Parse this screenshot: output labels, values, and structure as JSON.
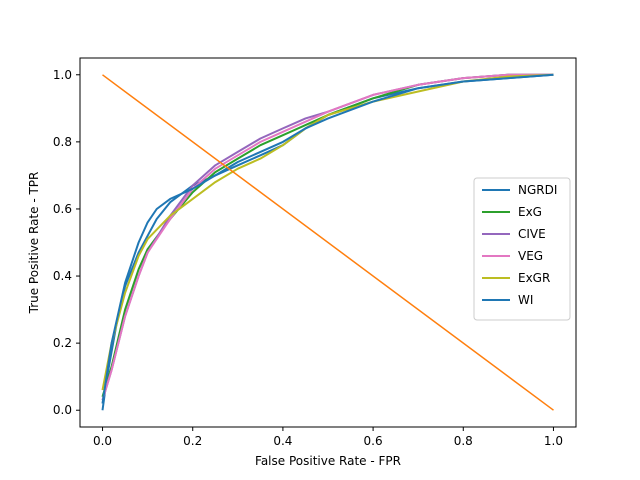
{
  "chart_data": {
    "type": "line",
    "xlabel": "False Positive Rate - FPR",
    "ylabel": "True Positive Rate - TPR",
    "xlim": [
      -0.05,
      1.05
    ],
    "ylim": [
      -0.05,
      1.05
    ],
    "xticks": [
      0.0,
      0.2,
      0.4,
      0.6,
      0.8,
      1.0
    ],
    "yticks": [
      0.0,
      0.2,
      0.4,
      0.6,
      0.8,
      1.0
    ],
    "tick_labels": [
      "0.0",
      "0.2",
      "0.4",
      "0.6",
      "0.8",
      "1.0"
    ],
    "grid": false,
    "legend": "center-right",
    "series": [
      {
        "name": "NGRDI",
        "color": "#1f77b4",
        "points": [
          [
            0,
            0
          ],
          [
            0.01,
            0.1
          ],
          [
            0.03,
            0.25
          ],
          [
            0.05,
            0.37
          ],
          [
            0.08,
            0.47
          ],
          [
            0.1,
            0.52
          ],
          [
            0.12,
            0.57
          ],
          [
            0.15,
            0.62
          ],
          [
            0.2,
            0.67
          ],
          [
            0.25,
            0.7
          ],
          [
            0.3,
            0.73
          ],
          [
            0.35,
            0.76
          ],
          [
            0.4,
            0.79
          ],
          [
            0.45,
            0.84
          ],
          [
            0.5,
            0.88
          ],
          [
            0.6,
            0.93
          ],
          [
            0.7,
            0.96
          ],
          [
            0.8,
            0.98
          ],
          [
            0.9,
            0.99
          ],
          [
            1,
            1
          ]
        ]
      },
      {
        "name": "ExG",
        "color": "#2ca02c",
        "points": [
          [
            0,
            0.04
          ],
          [
            0.02,
            0.13
          ],
          [
            0.05,
            0.3
          ],
          [
            0.08,
            0.42
          ],
          [
            0.1,
            0.48
          ],
          [
            0.15,
            0.57
          ],
          [
            0.2,
            0.65
          ],
          [
            0.25,
            0.71
          ],
          [
            0.3,
            0.75
          ],
          [
            0.35,
            0.79
          ],
          [
            0.4,
            0.82
          ],
          [
            0.45,
            0.85
          ],
          [
            0.5,
            0.88
          ],
          [
            0.6,
            0.93
          ],
          [
            0.7,
            0.97
          ],
          [
            0.8,
            0.99
          ],
          [
            0.9,
            1.0
          ],
          [
            1,
            1
          ]
        ]
      },
      {
        "name": "CIVE",
        "color": "#9467bd",
        "points": [
          [
            0,
            0.03
          ],
          [
            0.02,
            0.12
          ],
          [
            0.05,
            0.28
          ],
          [
            0.08,
            0.4
          ],
          [
            0.1,
            0.47
          ],
          [
            0.15,
            0.58
          ],
          [
            0.2,
            0.67
          ],
          [
            0.25,
            0.73
          ],
          [
            0.3,
            0.77
          ],
          [
            0.35,
            0.81
          ],
          [
            0.4,
            0.84
          ],
          [
            0.45,
            0.87
          ],
          [
            0.5,
            0.89
          ],
          [
            0.6,
            0.94
          ],
          [
            0.7,
            0.97
          ],
          [
            0.8,
            0.99
          ],
          [
            0.9,
            1.0
          ],
          [
            1,
            1
          ]
        ]
      },
      {
        "name": "VEG",
        "color": "#e377c2",
        "points": [
          [
            0,
            0.03
          ],
          [
            0.02,
            0.12
          ],
          [
            0.05,
            0.28
          ],
          [
            0.08,
            0.4
          ],
          [
            0.1,
            0.47
          ],
          [
            0.15,
            0.57
          ],
          [
            0.2,
            0.66
          ],
          [
            0.25,
            0.72
          ],
          [
            0.3,
            0.76
          ],
          [
            0.35,
            0.8
          ],
          [
            0.4,
            0.83
          ],
          [
            0.45,
            0.86
          ],
          [
            0.5,
            0.89
          ],
          [
            0.6,
            0.94
          ],
          [
            0.7,
            0.97
          ],
          [
            0.8,
            0.99
          ],
          [
            0.9,
            1.0
          ],
          [
            1,
            1
          ]
        ]
      },
      {
        "name": "ExGR",
        "color": "#bcbd22",
        "points": [
          [
            0,
            0.06
          ],
          [
            0.02,
            0.2
          ],
          [
            0.05,
            0.35
          ],
          [
            0.08,
            0.46
          ],
          [
            0.1,
            0.51
          ],
          [
            0.15,
            0.58
          ],
          [
            0.2,
            0.63
          ],
          [
            0.25,
            0.68
          ],
          [
            0.3,
            0.72
          ],
          [
            0.35,
            0.75
          ],
          [
            0.4,
            0.79
          ],
          [
            0.45,
            0.84
          ],
          [
            0.5,
            0.88
          ],
          [
            0.6,
            0.92
          ],
          [
            0.7,
            0.95
          ],
          [
            0.8,
            0.98
          ],
          [
            0.9,
            0.995
          ],
          [
            1,
            1
          ]
        ]
      },
      {
        "name": "WI",
        "color": "#1f77b4",
        "points": [
          [
            0,
            0.02
          ],
          [
            0.02,
            0.2
          ],
          [
            0.05,
            0.38
          ],
          [
            0.08,
            0.5
          ],
          [
            0.1,
            0.56
          ],
          [
            0.12,
            0.6
          ],
          [
            0.15,
            0.63
          ],
          [
            0.2,
            0.66
          ],
          [
            0.25,
            0.7
          ],
          [
            0.3,
            0.74
          ],
          [
            0.35,
            0.77
          ],
          [
            0.4,
            0.8
          ],
          [
            0.45,
            0.84
          ],
          [
            0.5,
            0.87
          ],
          [
            0.6,
            0.92
          ],
          [
            0.7,
            0.96
          ],
          [
            0.8,
            0.98
          ],
          [
            0.9,
            0.99
          ],
          [
            1,
            1
          ]
        ]
      }
    ],
    "reference_line": {
      "color": "#ff7f0e",
      "points": [
        [
          0,
          1
        ],
        [
          1,
          0
        ]
      ]
    }
  }
}
